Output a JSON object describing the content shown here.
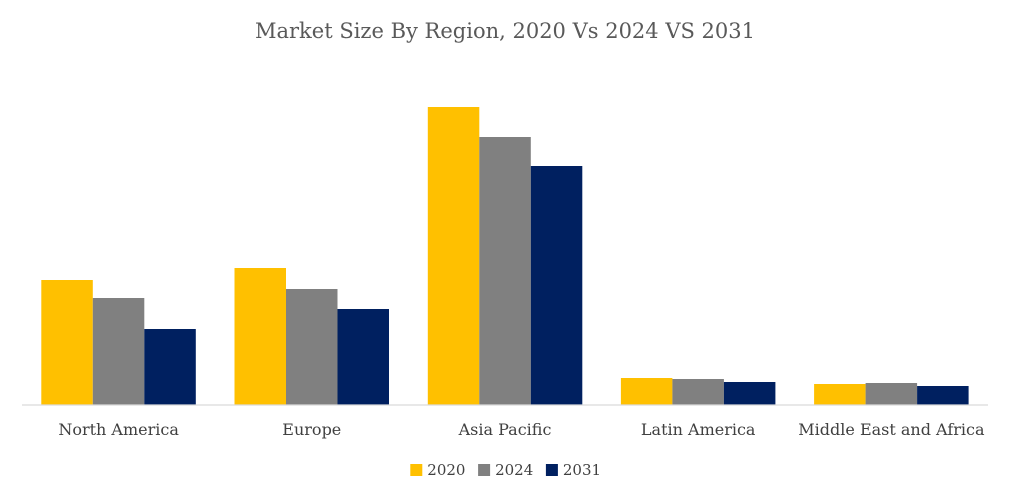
{
  "chart_data": {
    "type": "bar",
    "title": "Market Size By Region, 2020 Vs 2024 VS 2031",
    "categories": [
      "North America",
      "Europe",
      "Asia Pacific",
      "Latin America",
      "Middle East and Africa"
    ],
    "series": [
      {
        "name": "2020",
        "color": "#FFC000",
        "values": [
          125,
          137,
          298,
          27,
          21
        ]
      },
      {
        "name": "2024",
        "color": "#808080",
        "values": [
          107,
          116,
          268,
          26,
          22
        ]
      },
      {
        "name": "2031",
        "color": "#002060",
        "values": [
          76,
          96,
          239,
          23,
          19
        ]
      }
    ],
    "ylim": [
      0,
      310
    ],
    "grid": false,
    "y_axis_visible": false,
    "legend_position": "bottom",
    "xlabel": "",
    "ylabel": ""
  }
}
